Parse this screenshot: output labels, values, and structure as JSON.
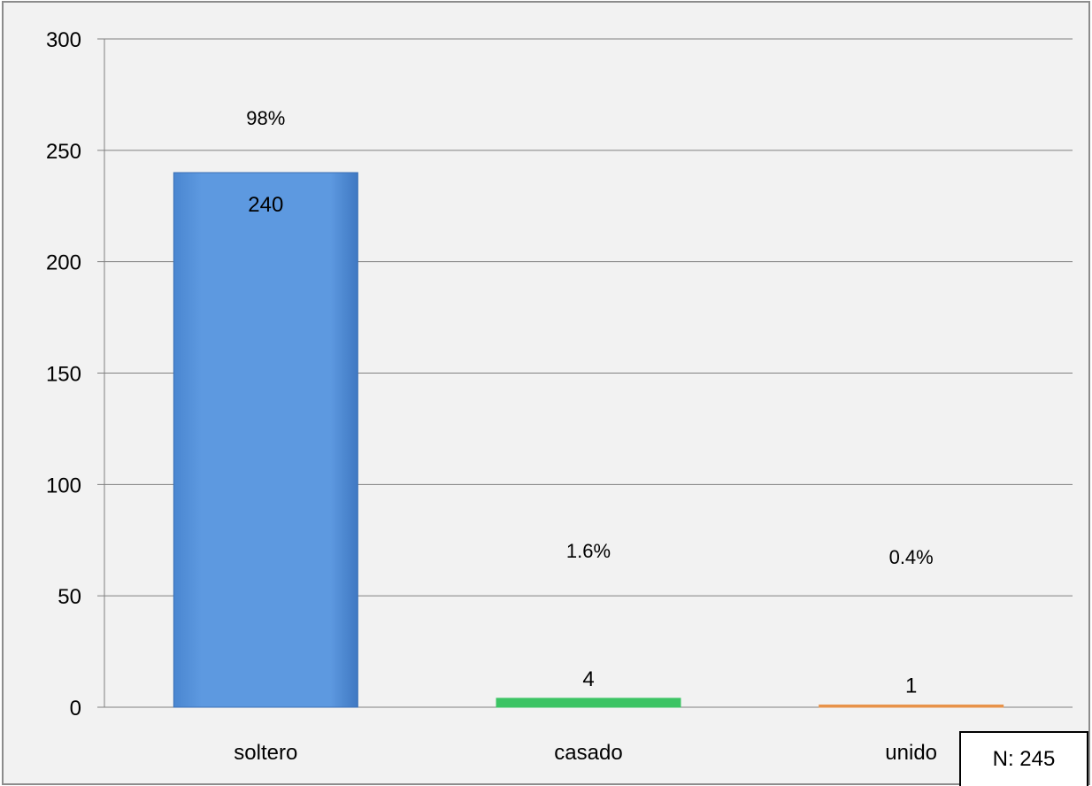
{
  "chart_data": {
    "type": "bar",
    "categories": [
      "soltero",
      "casado",
      "unido"
    ],
    "values": [
      240,
      4,
      1
    ],
    "value_labels": [
      "240",
      "4",
      "1"
    ],
    "percent_labels": [
      "98%",
      "1.6%",
      "0.4%"
    ],
    "colors": [
      "#5b97de",
      "#3cc464",
      "#e8934a"
    ],
    "ylim": [
      0,
      300
    ],
    "yticks": [
      "0",
      "50",
      "100",
      "150",
      "200",
      "250",
      "300"
    ],
    "grid": true,
    "title": "",
    "xlabel": "",
    "ylabel": ""
  },
  "note": "N: 245"
}
